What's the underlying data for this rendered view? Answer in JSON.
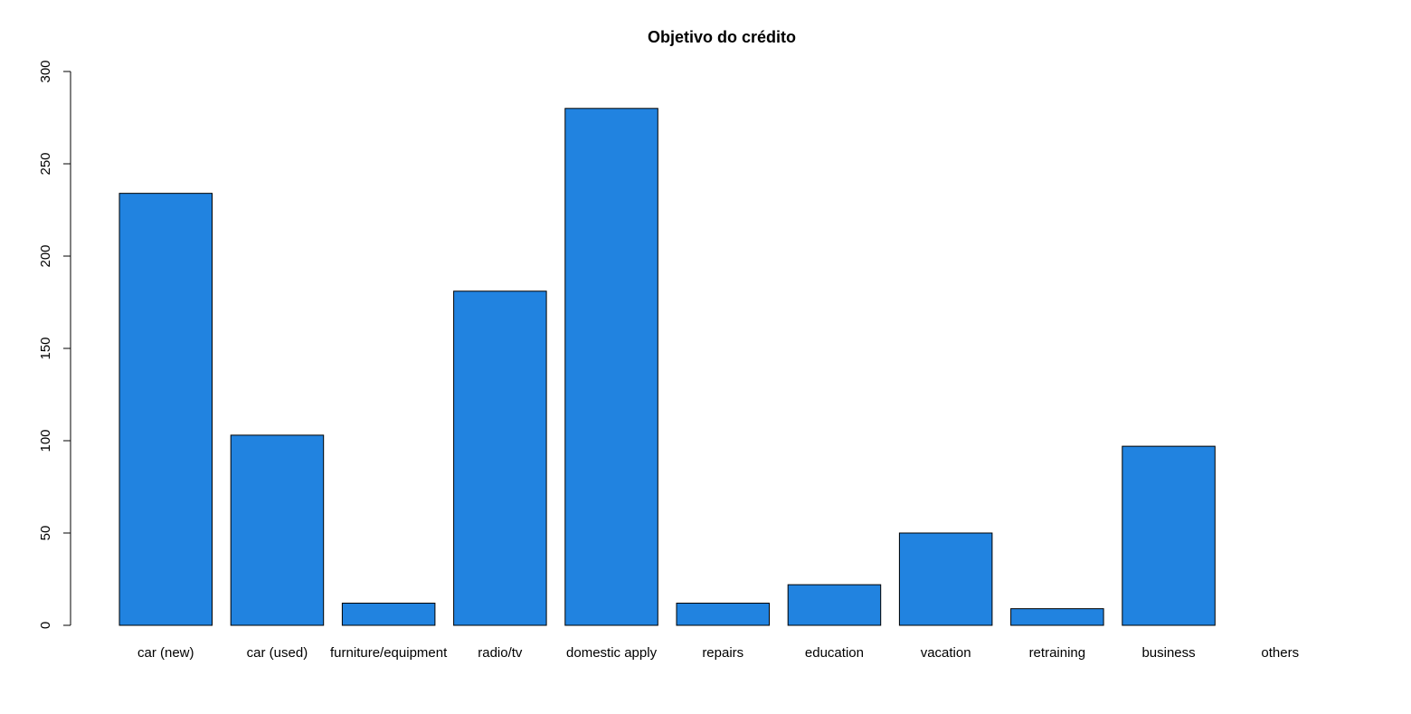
{
  "chart_data": {
    "type": "bar",
    "title": "Objetivo do crédito",
    "xlabel": "",
    "ylabel": "",
    "categories": [
      "car (new)",
      "car (used)",
      "furniture/equipment",
      "radio/tv",
      "domestic apply",
      "repairs",
      "education",
      "vacation",
      "retraining",
      "business",
      "others"
    ],
    "values": [
      234,
      103,
      12,
      181,
      280,
      12,
      22,
      50,
      9,
      97,
      0
    ],
    "ylim": [
      0,
      300
    ],
    "yticks": [
      "0",
      "50",
      "100",
      "150",
      "200",
      "250",
      "300"
    ],
    "grid": false,
    "bar_color": "#2183E0"
  }
}
